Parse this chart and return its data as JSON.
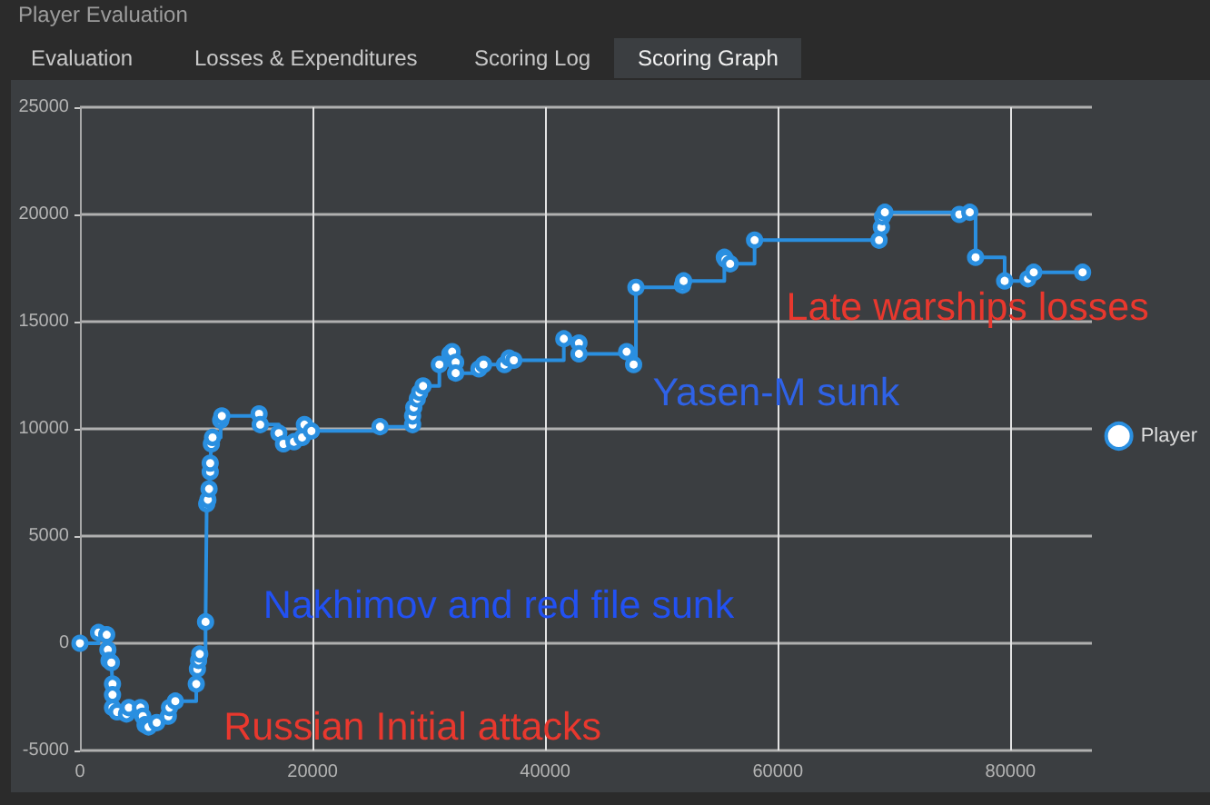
{
  "chart_data": {
    "type": "step",
    "title": "Player Evaluation",
    "subtitle": "Scoring Graph",
    "annotations": [
      "Evaluation",
      "Losses & Expenditures",
      "Scoring Log",
      "Russian Initial attacks",
      "Nakhimov and red file sunk",
      "Yasen-M sunk",
      "Late warships losses"
    ],
    "x": [
      0,
      1600,
      2300,
      2400,
      2500,
      2700,
      2800,
      2800,
      2800,
      3200,
      4000,
      4200,
      5200,
      5400,
      5600,
      5900,
      6600,
      7600,
      7700,
      8200,
      10000,
      10100,
      10200,
      10300,
      10800,
      10900,
      11000,
      11100,
      11200,
      11200,
      11300,
      11400,
      12100,
      12200,
      15400,
      15500,
      17100,
      17500,
      18400,
      19100,
      19300,
      19900,
      25800,
      28600,
      28600,
      28700,
      29000,
      29200,
      29500,
      30900,
      31800,
      32000,
      32300,
      32300,
      34300,
      34700,
      36500,
      36900,
      37300,
      41600,
      42900,
      42900,
      47000,
      47600,
      47800,
      51800,
      51900,
      55400,
      55500,
      55900,
      58000,
      68700,
      68900,
      69000,
      69200,
      75600,
      76500,
      77000,
      79500,
      81500,
      82000,
      86200
    ],
    "series": [
      {
        "name": "Player",
        "color": "#2a8fe0",
        "values": [
          0,
          500,
          400,
          -300,
          -800,
          -900,
          -1900,
          -2400,
          -3000,
          -3200,
          -3300,
          -3000,
          -3000,
          -3400,
          -3800,
          -3900,
          -3700,
          -3400,
          -3000,
          -2700,
          -1900,
          -1200,
          -800,
          -500,
          1000,
          6500,
          6700,
          7200,
          8000,
          8400,
          9300,
          9600,
          10400,
          10600,
          10700,
          10200,
          9800,
          9300,
          9400,
          9600,
          10200,
          9900,
          10100,
          10200,
          10600,
          11000,
          11400,
          11700,
          12000,
          13000,
          13500,
          13600,
          13100,
          12600,
          12800,
          13000,
          13000,
          13300,
          13200,
          14200,
          14000,
          13500,
          13600,
          13000,
          16600,
          16700,
          16900,
          18000,
          17900,
          17700,
          18800,
          18800,
          19400,
          19900,
          20100,
          20000,
          20100,
          18000,
          16900,
          17000,
          17300,
          17300
        ]
      }
    ],
    "xlim": [
      0,
      87000
    ],
    "ylim": [
      -5000,
      25000
    ],
    "xticks": [
      0,
      20000,
      40000,
      60000,
      80000
    ],
    "yticks": [
      -5000,
      0,
      5000,
      10000,
      15000,
      20000,
      25000
    ],
    "grid": true,
    "legend": "right",
    "marker": "circle",
    "line_style": "solid"
  }
}
